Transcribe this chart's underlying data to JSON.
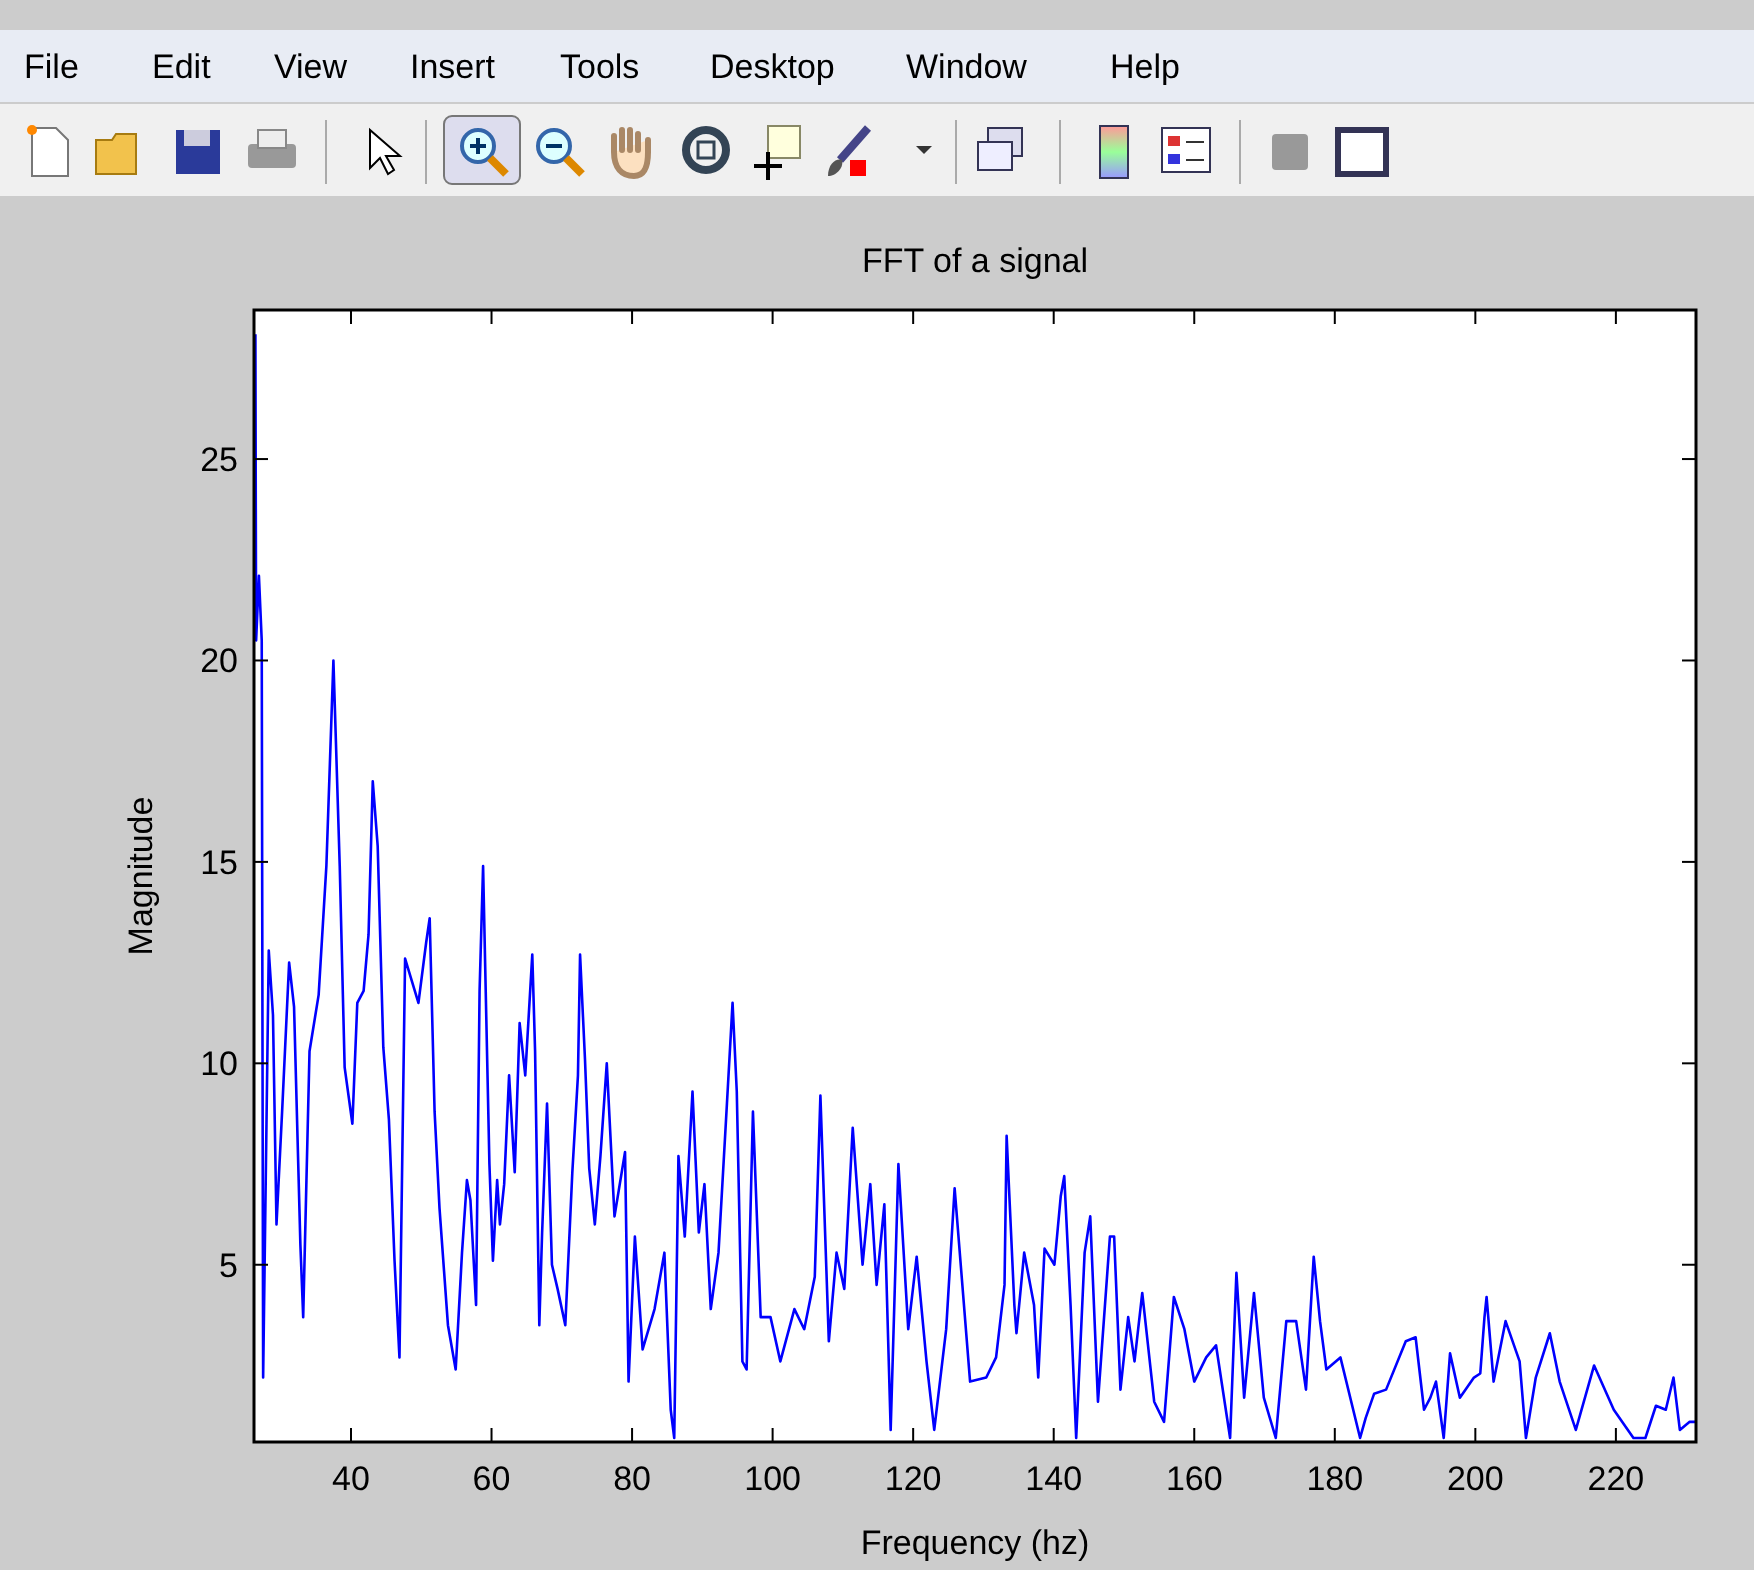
{
  "chart_data": {
    "type": "line",
    "title": "FFT of a signal",
    "xlabel": "Frequency (hz)",
    "ylabel": "Magnitude",
    "annotations": [
      "File",
      "Edit",
      "View",
      "Insert",
      "Tools",
      "Desktop",
      "Window",
      "Help"
    ],
    "color": "#0000ff",
    "xlim": [
      26.2,
      231.4
    ],
    "ylim": [
      0.6,
      28.7
    ],
    "xticks": [
      40,
      60,
      80,
      100,
      120,
      140,
      160,
      180,
      200,
      220
    ],
    "yticks": [
      5,
      10,
      15,
      20,
      25
    ],
    "grid": false,
    "x": [
      26.4,
      26.5,
      26.9,
      27.3,
      27.5,
      28.3,
      28.9,
      29.4,
      30.2,
      31.2,
      31.9,
      32.8,
      33.2,
      34.1,
      35.4,
      36.5,
      37.5,
      38.4,
      39.1,
      40.2,
      40.9,
      41.8,
      42.5,
      43.1,
      43.8,
      44.6,
      45.4,
      46.2,
      46.9,
      47.7,
      49.6,
      50.7,
      51.2,
      51.9,
      52.6,
      53.8,
      54.9,
      55.8,
      56.5,
      57,
      57.8,
      58.3,
      58.8,
      59.1,
      59.7,
      60.2,
      60.8,
      61.2,
      61.8,
      62.5,
      63.3,
      64,
      64.8,
      65.8,
      66.2,
      66.8,
      67.2,
      67.9,
      68.6,
      69.4,
      70.5,
      71.5,
      72.3,
      72.6,
      73.3,
      73.9,
      74.7,
      75.5,
      76.4,
      77.5,
      79,
      79.5,
      80.4,
      81.5,
      83.2,
      84.6,
      85.5,
      86,
      86.6,
      87.5,
      88.6,
      89.5,
      90.3,
      91.2,
      92.3,
      93.5,
      94.3,
      94.9,
      95.7,
      96.3,
      97.2,
      98.3,
      99.7,
      101.1,
      103.1,
      104.5,
      106,
      106.8,
      108,
      109.1,
      110.2,
      111.4,
      112.8,
      113.9,
      114.8,
      115.9,
      116.8,
      117.9,
      119.3,
      120.5,
      121.9,
      123,
      124.7,
      125.9,
      128.1,
      130.4,
      131.8,
      133,
      133.3,
      134.4,
      134.7,
      135.8,
      137.2,
      137.8,
      138.7,
      140.1,
      141,
      141.5,
      142.4,
      143.2,
      144.4,
      145.2,
      146.3,
      148,
      148.6,
      149.5,
      150.6,
      151.5,
      152.6,
      154.3,
      155.7,
      157.1,
      158.6,
      160,
      161.7,
      163.1,
      165.1,
      166,
      167.1,
      168.5,
      169.9,
      171.6,
      173.1,
      174.5,
      175.9,
      177,
      177.9,
      178.8,
      180.8,
      183.6,
      184.4,
      185.6,
      187.3,
      190.1,
      191.5,
      192.7,
      193.6,
      194.4,
      195.5,
      196.4,
      197.8,
      199.8,
      200.7,
      201.3,
      201.6,
      202.6,
      204.3,
      206.3,
      207.2,
      208.6,
      210.6,
      212,
      214.3,
      216.9,
      219.7,
      222.5,
      224.2,
      225.7,
      227.1,
      228.2,
      229.1,
      230.5,
      231.4
    ],
    "values": [
      28.1,
      20.5,
      22.1,
      20.5,
      2.2,
      12.8,
      11.2,
      6,
      8.8,
      12.5,
      11.4,
      5.5,
      3.7,
      10.3,
      11.7,
      14.9,
      20,
      14.9,
      9.9,
      8.5,
      11.5,
      11.8,
      13.2,
      17,
      15.4,
      10.4,
      8.6,
      5.1,
      2.7,
      12.6,
      11.5,
      13,
      13.6,
      8.8,
      6.4,
      3.5,
      2.4,
      5.3,
      7.1,
      6.6,
      4,
      11.8,
      14.9,
      12.4,
      7.5,
      5.1,
      7.1,
      6,
      7,
      9.7,
      7.3,
      11,
      9.7,
      12.7,
      10.3,
      3.5,
      5.8,
      9,
      5,
      4.4,
      3.5,
      7.3,
      9.7,
      12.7,
      10.1,
      7.4,
      6,
      7.7,
      10,
      6.2,
      7.8,
      2.1,
      5.7,
      2.9,
      3.9,
      5.3,
      1.4,
      0.7,
      7.7,
      5.7,
      9.3,
      5.8,
      7,
      3.9,
      5.3,
      9,
      11.5,
      9.3,
      2.6,
      2.4,
      8.8,
      3.7,
      3.7,
      2.6,
      3.9,
      3.4,
      4.7,
      9.2,
      3.1,
      5.3,
      4.4,
      8.4,
      5,
      7,
      4.5,
      6.5,
      0.9,
      7.5,
      3.4,
      5.2,
      2.6,
      0.9,
      3.4,
      6.9,
      2.1,
      2.2,
      2.7,
      4.5,
      8.2,
      4,
      3.3,
      5.3,
      4,
      2.2,
      5.4,
      5,
      6.7,
      7.2,
      4,
      0.7,
      5.3,
      6.2,
      1.6,
      5.7,
      5.7,
      1.9,
      3.7,
      2.6,
      4.3,
      1.6,
      1.1,
      4.2,
      3.4,
      2.1,
      2.7,
      3,
      0.7,
      4.8,
      1.7,
      4.3,
      1.7,
      0.7,
      3.6,
      3.6,
      1.9,
      5.2,
      3.6,
      2.4,
      2.7,
      0.7,
      1.2,
      1.8,
      1.9,
      3.1,
      3.2,
      1.4,
      1.7,
      2.1,
      0.7,
      2.8,
      1.7,
      2.2,
      2.3,
      3.7,
      4.2,
      2.1,
      3.6,
      2.6,
      0.7,
      2.2,
      3.3,
      2.1,
      0.9,
      2.5,
      1.4,
      0.7,
      0.7,
      1.5,
      1.4,
      2.2,
      0.9,
      1.1,
      1.1
    ]
  }
}
